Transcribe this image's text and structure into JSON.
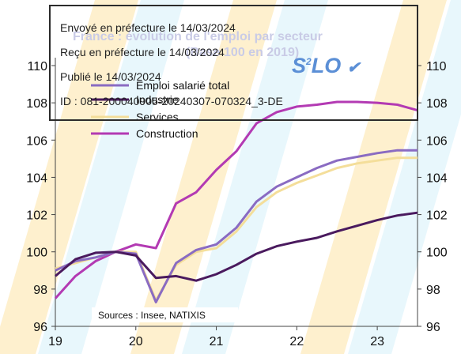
{
  "header": {
    "title": "France : évolution de l'emploi par secteur",
    "subtitle": "(Base 100 en 2019)"
  },
  "stamp": {
    "line1": "Envoyé en préfecture le 14/03/2024",
    "line2": "Reçu en préfecture le 14/03/2024",
    "line3": "Publié le 14/03/2024",
    "line4": "ID : 081-200040905-20240307-070324_3-DE",
    "logo_main": "S",
    "logo_sup": "2",
    "logo_end": "LO"
  },
  "source_note": "Sources : Insee, NATIXIS",
  "colors": {
    "background_stripe_orange": "#fde3a6",
    "background_stripe_cyan": "#d6f1fa",
    "logo_blue": "#5b8fd6"
  },
  "chart_data": {
    "type": "line",
    "title": "France : évolution de l'emploi par secteur",
    "subtitle": "(Base 100 en 2019)",
    "xlabel": "",
    "ylabel": "",
    "ylim": [
      96,
      110
    ],
    "xlim": [
      2019,
      2023.5
    ],
    "grid": false,
    "legend_position": "top-left",
    "x_ticks": [
      "19",
      "20",
      "21",
      "22",
      "23"
    ],
    "y_ticks_left": [
      "96",
      "98",
      "100",
      "102",
      "104",
      "106",
      "108",
      "110"
    ],
    "y_ticks_right": [
      "96",
      "98",
      "100",
      "102",
      "104",
      "106",
      "108",
      "110"
    ],
    "x": [
      2019.0,
      2019.25,
      2019.5,
      2019.75,
      2020.0,
      2020.25,
      2020.5,
      2020.75,
      2021.0,
      2021.25,
      2021.5,
      2021.75,
      2022.0,
      2022.25,
      2022.5,
      2022.75,
      2023.0,
      2023.25,
      2023.5
    ],
    "series": [
      {
        "name": "Emploi salarié total",
        "color": "#8a6bc2",
        "values": [
          99.0,
          99.5,
          99.7,
          100.0,
          99.9,
          97.3,
          99.4,
          100.1,
          100.4,
          101.3,
          102.7,
          103.5,
          104.0,
          104.5,
          104.9,
          105.1,
          105.3,
          105.45,
          105.45
        ]
      },
      {
        "name": "Industrie",
        "color": "#4a1a5e",
        "values": [
          98.7,
          99.6,
          99.95,
          100.0,
          99.8,
          98.6,
          98.7,
          98.45,
          98.8,
          99.3,
          99.9,
          100.3,
          100.55,
          100.75,
          101.1,
          101.4,
          101.7,
          101.95,
          102.1
        ]
      },
      {
        "name": "Services",
        "color": "#f4de9a",
        "values": [
          99.1,
          99.4,
          99.7,
          100.0,
          100.0,
          97.4,
          99.3,
          100.0,
          100.2,
          101.1,
          102.4,
          103.2,
          103.7,
          104.1,
          104.5,
          104.75,
          104.9,
          105.05,
          105.05
        ]
      },
      {
        "name": "Construction",
        "color": "#b33ab3",
        "values": [
          97.5,
          98.7,
          99.5,
          100.0,
          100.4,
          100.2,
          102.6,
          103.2,
          104.4,
          105.4,
          106.9,
          107.5,
          107.8,
          107.9,
          108.05,
          108.05,
          108.0,
          107.9,
          107.6
        ]
      }
    ]
  }
}
